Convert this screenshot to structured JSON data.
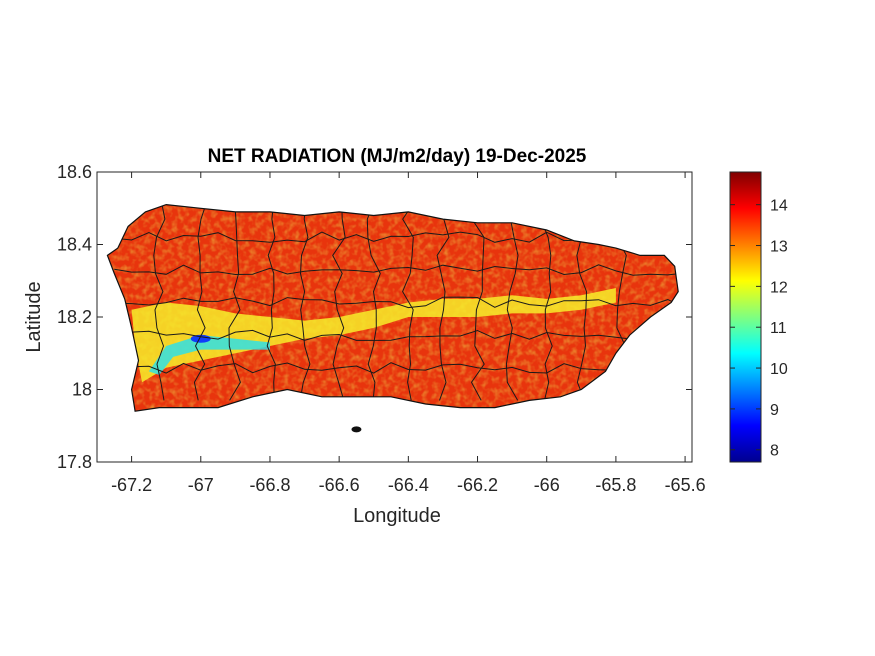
{
  "title": "NET RADIATION (MJ/m2/day) 19-Dec-2025",
  "xlabel": "Longitude",
  "ylabel": "Latitude",
  "map": {
    "region": "Puerto Rico",
    "variable": "net radiation",
    "xlim": [
      -67.3,
      -65.58
    ],
    "ylim": [
      17.8,
      18.6
    ],
    "xticks": [
      -67.2,
      -67,
      -66.8,
      -66.6,
      -66.4,
      -66.2,
      -66,
      -65.8,
      -65.6
    ],
    "xtick_labels": [
      "-67.2",
      "-67",
      "-66.8",
      "-66.6",
      "-66.4",
      "-66.2",
      "-66",
      "-65.8",
      "-65.6"
    ],
    "yticks": [
      18.6,
      18.4,
      18.2,
      18,
      17.8
    ],
    "ytick_labels": [
      "18.6",
      "18.4",
      "18.2",
      "18",
      "17.8"
    ],
    "coastline": [
      [
        -67.27,
        18.37
      ],
      [
        -67.24,
        18.39
      ],
      [
        -67.21,
        18.45
      ],
      [
        -67.16,
        18.49
      ],
      [
        -67.1,
        18.51
      ],
      [
        -67.0,
        18.5
      ],
      [
        -66.9,
        18.49
      ],
      [
        -66.8,
        18.49
      ],
      [
        -66.7,
        18.48
      ],
      [
        -66.6,
        18.49
      ],
      [
        -66.5,
        18.48
      ],
      [
        -66.4,
        18.49
      ],
      [
        -66.3,
        18.47
      ],
      [
        -66.2,
        18.46
      ],
      [
        -66.1,
        18.46
      ],
      [
        -66.0,
        18.44
      ],
      [
        -65.92,
        18.41
      ],
      [
        -65.85,
        18.4
      ],
      [
        -65.8,
        18.39
      ],
      [
        -65.73,
        18.37
      ],
      [
        -65.66,
        18.37
      ],
      [
        -65.63,
        18.34
      ],
      [
        -65.62,
        18.27
      ],
      [
        -65.64,
        18.24
      ],
      [
        -65.7,
        18.2
      ],
      [
        -65.76,
        18.15
      ],
      [
        -65.8,
        18.1
      ],
      [
        -65.83,
        18.05
      ],
      [
        -65.9,
        18.0
      ],
      [
        -65.96,
        17.98
      ],
      [
        -66.05,
        17.97
      ],
      [
        -66.15,
        17.95
      ],
      [
        -66.25,
        17.95
      ],
      [
        -66.35,
        17.96
      ],
      [
        -66.45,
        17.98
      ],
      [
        -66.55,
        17.98
      ],
      [
        -66.65,
        17.98
      ],
      [
        -66.75,
        18.0
      ],
      [
        -66.85,
        17.98
      ],
      [
        -66.95,
        17.95
      ],
      [
        -67.05,
        17.95
      ],
      [
        -67.12,
        17.95
      ],
      [
        -67.19,
        17.94
      ],
      [
        -67.2,
        18.0
      ],
      [
        -67.18,
        18.08
      ],
      [
        -67.2,
        18.17
      ],
      [
        -67.22,
        18.25
      ],
      [
        -67.25,
        18.32
      ]
    ],
    "cool_band": [
      [
        -67.2,
        18.22
      ],
      [
        -67.1,
        18.24
      ],
      [
        -67.0,
        18.23
      ],
      [
        -66.9,
        18.21
      ],
      [
        -66.8,
        18.2
      ],
      [
        -66.7,
        18.19
      ],
      [
        -66.6,
        18.2
      ],
      [
        -66.5,
        18.22
      ],
      [
        -66.4,
        18.24
      ],
      [
        -66.3,
        18.25
      ],
      [
        -66.2,
        18.25
      ],
      [
        -66.1,
        18.26
      ],
      [
        -66.0,
        18.25
      ],
      [
        -65.9,
        18.26
      ],
      [
        -65.8,
        18.28
      ],
      [
        -65.8,
        18.24
      ],
      [
        -65.9,
        18.22
      ],
      [
        -66.0,
        18.21
      ],
      [
        -66.1,
        18.21
      ],
      [
        -66.2,
        18.2
      ],
      [
        -66.3,
        18.2
      ],
      [
        -66.4,
        18.2
      ],
      [
        -66.5,
        18.17
      ],
      [
        -66.6,
        18.15
      ],
      [
        -66.7,
        18.14
      ],
      [
        -66.8,
        18.12
      ],
      [
        -66.9,
        18.1
      ],
      [
        -67.0,
        18.08
      ],
      [
        -67.1,
        18.06
      ],
      [
        -67.17,
        18.02
      ],
      [
        -67.19,
        18.12
      ]
    ],
    "coolest_band": [
      [
        -67.15,
        18.05
      ],
      [
        -67.1,
        18.12
      ],
      [
        -67.0,
        18.15
      ],
      [
        -66.9,
        18.14
      ],
      [
        -66.8,
        18.13
      ],
      [
        -66.8,
        18.11
      ],
      [
        -66.9,
        18.11
      ],
      [
        -67.0,
        18.11
      ],
      [
        -67.08,
        18.09
      ],
      [
        -67.12,
        18.04
      ]
    ],
    "minimum_spot": [
      -67.0,
      18.14
    ]
  },
  "colorbar": {
    "colormap": "jet",
    "range": [
      7.7,
      14.8
    ],
    "ticks": [
      8,
      9,
      10,
      11,
      12,
      13,
      14
    ],
    "tick_labels": [
      "8",
      "9",
      "10",
      "11",
      "12",
      "13",
      "14"
    ],
    "colors": [
      "#00008f",
      "#0000ff",
      "#00ffff",
      "#ffff00",
      "#ff0000",
      "#800000"
    ]
  }
}
